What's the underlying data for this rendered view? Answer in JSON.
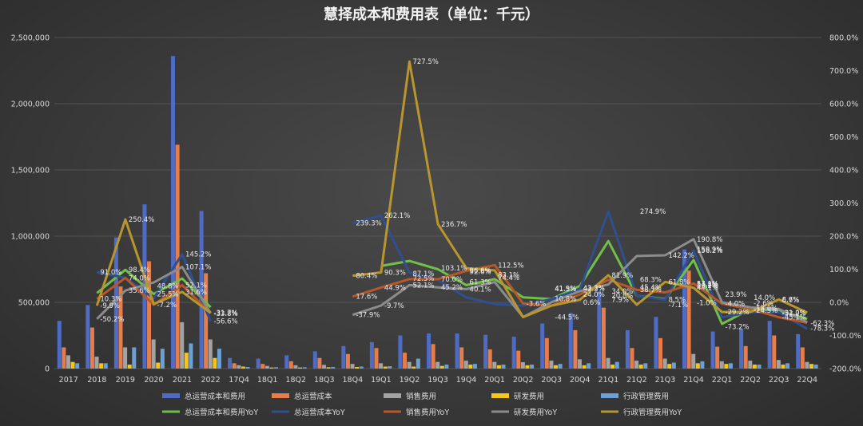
{
  "chart_data": {
    "type": "bar",
    "title": "慧择成本和费用表（单位：千元）",
    "categories": [
      "2017",
      "2018",
      "2019",
      "2020",
      "2021",
      "2022",
      "17Q4",
      "18Q1",
      "18Q2",
      "18Q3",
      "18Q4",
      "19Q1",
      "19Q2",
      "19Q3",
      "19Q4",
      "20Q1",
      "20Q2",
      "20Q3",
      "20Q4",
      "21Q1",
      "21Q2",
      "21Q3",
      "21Q4",
      "22Q1",
      "22Q2",
      "22Q3",
      "22Q4"
    ],
    "y_left": {
      "lim": [
        0,
        2500000
      ],
      "ticks": [
        "0",
        "500,000",
        "1,000,000",
        "1,500,000",
        "2,000,000",
        "2,500,000"
      ],
      "tick_values": [
        0,
        500000,
        1000000,
        1500000,
        2000000,
        2500000
      ]
    },
    "y_right": {
      "lim": [
        -200,
        800
      ],
      "ticks": [
        "-200.0%",
        "-100.0%",
        "0.0%",
        "100.0%",
        "200.0%",
        "300.0%",
        "400.0%",
        "500.0%",
        "600.0%",
        "700.0%",
        "800.0%"
      ],
      "tick_values": [
        -200,
        -100,
        0,
        100,
        200,
        300,
        400,
        500,
        600,
        700,
        800
      ]
    },
    "grid": true,
    "legend_position": "bottom",
    "bar_series": [
      {
        "name": "总运营成本和费用",
        "color": "#4f6cc4",
        "values": [
          360000,
          480000,
          990000,
          1240000,
          2360000,
          1190000,
          80000,
          75000,
          100000,
          130000,
          170000,
          200000,
          250000,
          265000,
          265000,
          255000,
          240000,
          340000,
          420000,
          580000,
          290000,
          390000,
          900000,
          280000,
          300000,
          360000,
          260000
        ]
      },
      {
        "name": "总运营成本",
        "color": "#e67d4a",
        "values": [
          160000,
          310000,
          620000,
          810000,
          1690000,
          720000,
          40000,
          35000,
          55000,
          80000,
          110000,
          155000,
          120000,
          185000,
          160000,
          145000,
          135000,
          230000,
          290000,
          460000,
          155000,
          230000,
          740000,
          165000,
          170000,
          250000,
          160000
        ]
      },
      {
        "name": "销售费用",
        "color": "#a3a3a3",
        "values": [
          100000,
          90000,
          160000,
          220000,
          350000,
          220000,
          25000,
          20000,
          25000,
          28000,
          35000,
          40000,
          50000,
          50000,
          60000,
          50000,
          48000,
          60000,
          70000,
          80000,
          60000,
          75000,
          110000,
          55000,
          60000,
          65000,
          50000
        ]
      },
      {
        "name": "研发费用",
        "color": "#f5c518",
        "values": [
          50000,
          40000,
          30000,
          45000,
          120000,
          80000,
          15000,
          8000,
          8000,
          10000,
          12000,
          15000,
          15000,
          20000,
          30000,
          25000,
          25000,
          25000,
          25000,
          30000,
          30000,
          35000,
          40000,
          35000,
          30000,
          30000,
          35000
        ]
      },
      {
        "name": "行政管理费用",
        "color": "#6aa0d6",
        "values": [
          40000,
          40000,
          160000,
          150000,
          190000,
          150000,
          12000,
          10000,
          10000,
          12000,
          15000,
          18000,
          75000,
          30000,
          35000,
          30000,
          30000,
          35000,
          40000,
          50000,
          40000,
          45000,
          55000,
          40000,
          30000,
          40000,
          30000
        ]
      }
    ],
    "line_series": [
      {
        "name": "总运营成本和费用YoY",
        "color": "#6fbf4a",
        "points": [
          null,
          28,
          98.4,
          25,
          72,
          -15,
          null,
          null,
          null,
          null,
          null,
          110,
          125,
          100,
          52,
          70,
          15,
          10,
          50,
          185,
          20,
          10,
          128,
          -65,
          -20,
          -25,
          -50
        ]
      },
      {
        "name": "总运营成本YoY",
        "color": "#2f4f8f",
        "points": [
          null,
          91,
          74,
          12,
          145.2,
          -57,
          null,
          null,
          null,
          null,
          239.3,
          262.1,
          90,
          67,
          15,
          -5,
          -10,
          10,
          40,
          274.9,
          20,
          8,
          156.2,
          -45,
          -30,
          -30,
          -80
        ]
      },
      {
        "name": "销售费用YoY",
        "color": "#b7572a",
        "points": [
          null,
          10.3,
          74,
          -7.2,
          52.1,
          -33,
          null,
          null,
          null,
          null,
          17.6,
          44.9,
          70,
          70,
          95,
          112.5,
          -3.6,
          -10,
          24,
          68.3,
          38,
          30,
          57.1,
          -4,
          -20,
          -45,
          -62
        ]
      },
      {
        "name": "研发费用YoY",
        "color": "#8c8c8c",
        "points": [
          null,
          -50.2,
          35.6,
          60,
          107.1,
          -33,
          null,
          null,
          null,
          null,
          -37.9,
          -9.7,
          52.1,
          45.2,
          40.1,
          61.3,
          -44.5,
          0.6,
          34,
          54,
          140,
          142.2,
          190.8,
          0,
          -15,
          -20,
          -60
        ]
      },
      {
        "name": "行政管理费用YoY",
        "color": "#b8962d",
        "points": [
          null,
          -9.9,
          250.4,
          -5,
          31.6,
          -31.7,
          null,
          null,
          null,
          null,
          80.4,
          90.3,
          727.5,
          236.7,
          103.1,
          96.6,
          -44.5,
          -10,
          7.9,
          81.9,
          -7.1,
          61.8,
          44.1,
          -29.2,
          -29.2,
          8.6,
          -31.0
        ]
      }
    ],
    "data_labels": [
      {
        "cat": 1,
        "val": 91.0,
        "text": "91.0%"
      },
      {
        "cat": 1,
        "val": 10.3,
        "text": "10.3%"
      },
      {
        "cat": 1,
        "val": -9.9,
        "text": "-9.9%"
      },
      {
        "cat": 1,
        "val": -50.2,
        "text": "-50.2%"
      },
      {
        "cat": 2,
        "val": 250.4,
        "text": "250.4%"
      },
      {
        "cat": 2,
        "val": 98.4,
        "text": "98.4%"
      },
      {
        "cat": 2,
        "val": 74.0,
        "text": "74.0%"
      },
      {
        "cat": 2,
        "val": 35.6,
        "text": "35.6%"
      },
      {
        "cat": 3,
        "val": 48.8,
        "text": "48.8%"
      },
      {
        "cat": 3,
        "val": 25.5,
        "text": "25.5%"
      },
      {
        "cat": 3,
        "val": -7.2,
        "text": "-7.2%"
      },
      {
        "cat": 4,
        "val": 145.2,
        "text": "145.2%"
      },
      {
        "cat": 4,
        "val": 107.1,
        "text": "107.1%"
      },
      {
        "cat": 4,
        "val": 52.1,
        "text": "52.1%"
      },
      {
        "cat": 4,
        "val": 31.6,
        "text": "31.6%"
      },
      {
        "cat": 5,
        "val": -31.7,
        "text": "-31.7%"
      },
      {
        "cat": 5,
        "val": -33.8,
        "text": "-33.8%"
      },
      {
        "cat": 5,
        "val": -56.6,
        "text": "-56.6%"
      },
      {
        "cat": 10,
        "val": 239.3,
        "text": "239.3%"
      },
      {
        "cat": 10,
        "val": 80.4,
        "text": "80.4%"
      },
      {
        "cat": 10,
        "val": 17.6,
        "text": "17.6%"
      },
      {
        "cat": 10,
        "val": -37.9,
        "text": "-37.9%"
      },
      {
        "cat": 11,
        "val": 262.1,
        "text": "262.1%"
      },
      {
        "cat": 11,
        "val": 90.3,
        "text": "90.3%"
      },
      {
        "cat": 11,
        "val": 44.9,
        "text": "44.9%"
      },
      {
        "cat": 11,
        "val": -9.7,
        "text": "-9.7%"
      },
      {
        "cat": 12,
        "val": 727.5,
        "text": "727.5%"
      },
      {
        "cat": 12,
        "val": 87.1,
        "text": "87.1%"
      },
      {
        "cat": 12,
        "val": 72.5,
        "text": "72.5%"
      },
      {
        "cat": 12,
        "val": 52.1,
        "text": "52.1%"
      },
      {
        "cat": 13,
        "val": 236.7,
        "text": "236.7%"
      },
      {
        "cat": 13,
        "val": 103.1,
        "text": "103.1%"
      },
      {
        "cat": 13,
        "val": 70.0,
        "text": "70.0%"
      },
      {
        "cat": 13,
        "val": 45.2,
        "text": "45.2%"
      },
      {
        "cat": 14,
        "val": 96.6,
        "text": "96.6%"
      },
      {
        "cat": 14,
        "val": 92.6,
        "text": "92.6%"
      },
      {
        "cat": 14,
        "val": 61.3,
        "text": "61.3%"
      },
      {
        "cat": 14,
        "val": 40.1,
        "text": "40.1%"
      },
      {
        "cat": 15,
        "val": 112.5,
        "text": "112.5%"
      },
      {
        "cat": 15,
        "val": 83.1,
        "text": "83.1%"
      },
      {
        "cat": 15,
        "val": 74.4,
        "text": "74.4%"
      },
      {
        "cat": 16,
        "val": -3.6,
        "text": "-3.6%"
      },
      {
        "cat": 17,
        "val": 41.9,
        "text": "41.9%"
      },
      {
        "cat": 17,
        "val": 41.5,
        "text": "41.5%"
      },
      {
        "cat": 17,
        "val": 10.8,
        "text": "10.8%"
      },
      {
        "cat": 17,
        "val": -44.5,
        "text": "-44.5%"
      },
      {
        "cat": 18,
        "val": 43.3,
        "text": "43.3%"
      },
      {
        "cat": 18,
        "val": 42.2,
        "text": "42.2%"
      },
      {
        "cat": 18,
        "val": 24.0,
        "text": "24.0%"
      },
      {
        "cat": 18,
        "val": 0.6,
        "text": "0.6%"
      },
      {
        "cat": 19,
        "val": 81.9,
        "text": "81.9%"
      },
      {
        "cat": 19,
        "val": 34.0,
        "text": "34.0%"
      },
      {
        "cat": 19,
        "val": 20.8,
        "text": "20.8%"
      },
      {
        "cat": 19,
        "val": 7.9,
        "text": "7.9%"
      },
      {
        "cat": 20,
        "val": 274.9,
        "text": "274.9%"
      },
      {
        "cat": 20,
        "val": 68.3,
        "text": "68.3%"
      },
      {
        "cat": 20,
        "val": 45.4,
        "text": "45.4%"
      },
      {
        "cat": 20,
        "val": 38.7,
        "text": "38.7%"
      },
      {
        "cat": 21,
        "val": 142.2,
        "text": "142.2%"
      },
      {
        "cat": 21,
        "val": 61.8,
        "text": "61.8%"
      },
      {
        "cat": 21,
        "val": 8.5,
        "text": "8.5%"
      },
      {
        "cat": 21,
        "val": -7.1,
        "text": "-7.1%"
      },
      {
        "cat": 22,
        "val": 190.8,
        "text": "190.8%"
      },
      {
        "cat": 22,
        "val": 159.9,
        "text": "159.9%"
      },
      {
        "cat": 22,
        "val": 156.2,
        "text": "156.2%"
      },
      {
        "cat": 22,
        "val": 54.8,
        "text": "54.8%"
      },
      {
        "cat": 22,
        "val": 44.1,
        "text": "44.1%"
      },
      {
        "cat": 22,
        "val": 57.1,
        "text": "57.1%"
      },
      {
        "cat": 22,
        "val": 50.2,
        "text": "50.2%"
      },
      {
        "cat": 22,
        "val": -1.0,
        "text": "-1.0%"
      },
      {
        "cat": 23,
        "val": 23.9,
        "text": "23.9%"
      },
      {
        "cat": 23,
        "val": -4.0,
        "text": "-4.0%"
      },
      {
        "cat": 23,
        "val": -29.2,
        "text": "-29.2%"
      },
      {
        "cat": 23,
        "val": -73.2,
        "text": "-73.2%"
      },
      {
        "cat": 24,
        "val": 14.0,
        "text": "14.0%"
      },
      {
        "cat": 24,
        "val": -2.6,
        "text": "-2.6%"
      },
      {
        "cat": 24,
        "val": -18.0,
        "text": "-18.0%"
      },
      {
        "cat": 24,
        "val": -24.5,
        "text": "-24.5%"
      },
      {
        "cat": 25,
        "val": 6.7,
        "text": "6.7%"
      },
      {
        "cat": 25,
        "val": 8.6,
        "text": "8.6%"
      },
      {
        "cat": 25,
        "val": -31.0,
        "text": "-31.0%"
      },
      {
        "cat": 25,
        "val": -32.2,
        "text": "-32.2%"
      },
      {
        "cat": 25,
        "val": -45.1,
        "text": "-45.1%"
      },
      {
        "cat": 26,
        "val": -62.3,
        "text": "-62.3%"
      },
      {
        "cat": 26,
        "val": -78.3,
        "text": "-78.3%"
      }
    ]
  }
}
